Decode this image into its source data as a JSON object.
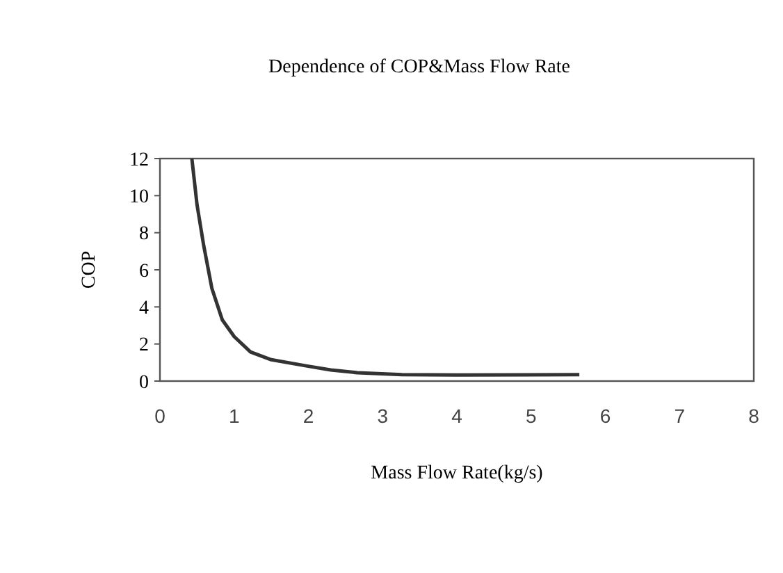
{
  "chart_data": {
    "type": "line",
    "title": "Dependence of COP&Mass Flow Rate",
    "xlabel": "Mass Flow Rate(kg/s)",
    "ylabel": "COP",
    "x": [
      0.43,
      0.5,
      0.59,
      0.7,
      0.84,
      1.0,
      1.22,
      1.5,
      1.97,
      2.3,
      2.66,
      3.26,
      4.0,
      5.0,
      5.65
    ],
    "series": [
      {
        "color": "#333333",
        "values": [
          12,
          9.5,
          7.3,
          5.0,
          3.3,
          2.4,
          1.57,
          1.15,
          0.82,
          0.6,
          0.45,
          0.35,
          0.33,
          0.34,
          0.35
        ]
      }
    ],
    "xlim": [
      0,
      8
    ],
    "xticks": [
      0,
      1,
      2,
      3,
      4,
      5,
      6,
      7,
      8
    ],
    "ylim": [
      0,
      12
    ],
    "yticks": [
      0,
      2,
      4,
      6,
      8,
      10,
      12
    ],
    "grid": false
  }
}
